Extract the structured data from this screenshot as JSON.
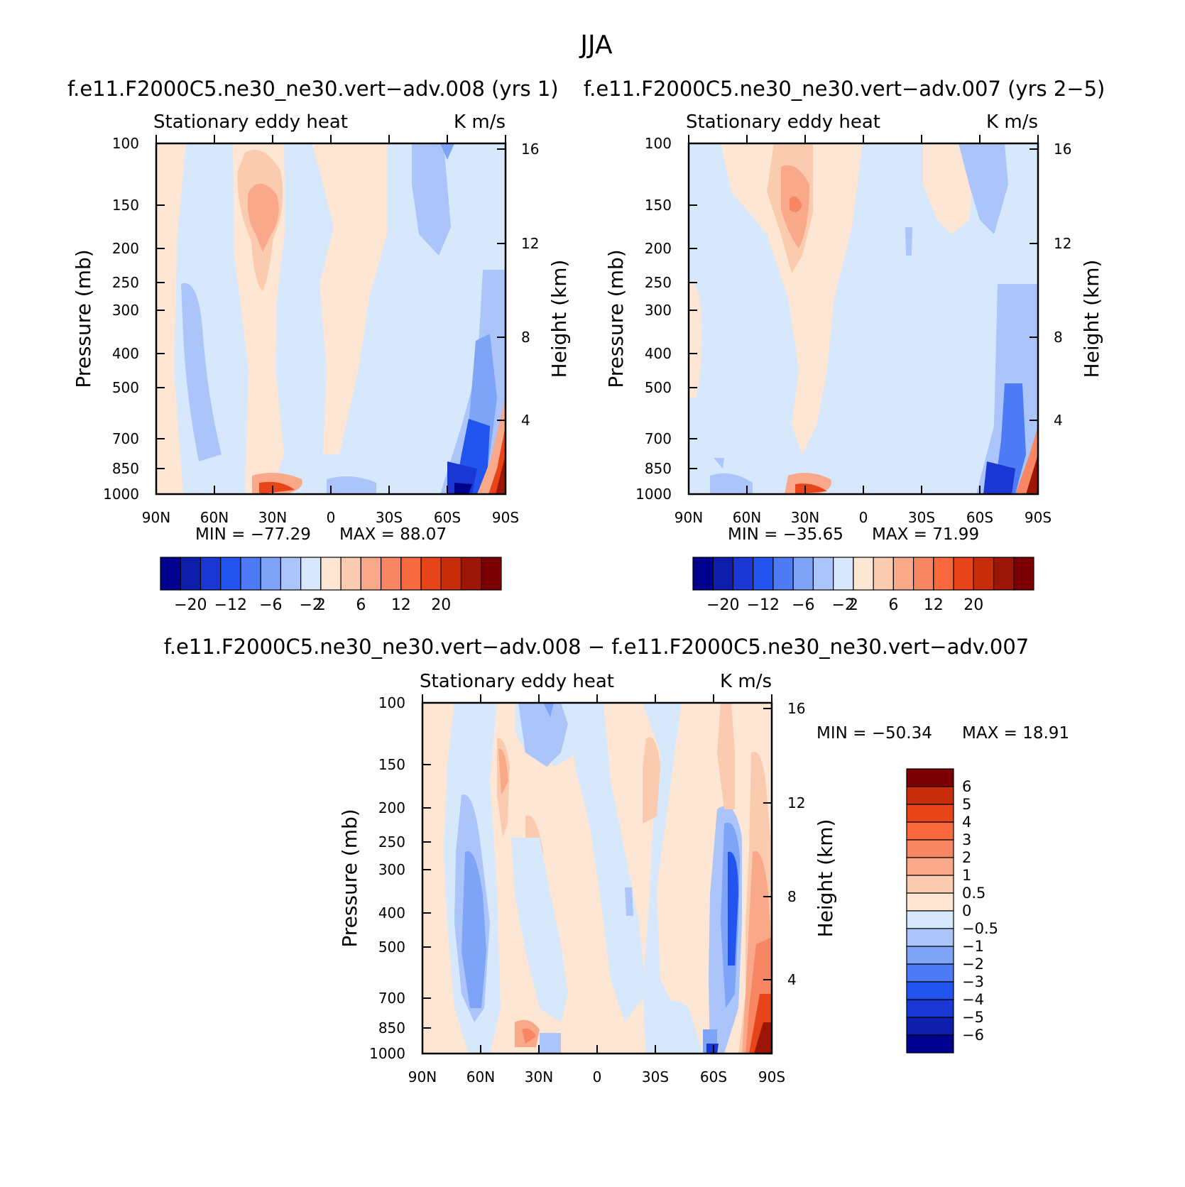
{
  "figure": {
    "title": "JJA"
  },
  "palette": {
    "diverging_18": [
      "#00008f",
      "#0c1eaa",
      "#1a37d4",
      "#2255f0",
      "#4d7af5",
      "#7ea4f7",
      "#abc5fa",
      "#d7e8fc",
      "#fde6d3",
      "#fbcbb0",
      "#f9a989",
      "#f88662",
      "#f86a3d",
      "#e8441a",
      "#c72d0a",
      "#9b1606",
      "#7c0003"
    ],
    "diff_colorbar": [
      "#00008f",
      "#0c1eaa",
      "#1a37d4",
      "#2255f0",
      "#4d7af5",
      "#7ea4f7",
      "#abc5fa",
      "#d7e8fc",
      "#fde6d3",
      "#fbcbb0",
      "#f9a989",
      "#f88662",
      "#f86a3d",
      "#e8441a",
      "#c72d0a",
      "#7c0003"
    ]
  },
  "chart_data": [
    {
      "type": "heatmap",
      "panel": "top-left",
      "title": "f.e11.F2000C5.ne30_ne30.vert−adv.008 (yrs 1)",
      "left_label": "Stationary eddy heat",
      "right_label": "K m/s",
      "xlabel": "",
      "ylabel": "Pressure (mb)",
      "ylabel_right": "Height (km)",
      "x_ticks": [
        "90N",
        "60N",
        "30N",
        "0",
        "30S",
        "60S",
        "90S"
      ],
      "y_ticks": [
        "100",
        "150",
        "200",
        "250",
        "300",
        "400",
        "500",
        "700",
        "850",
        "1000"
      ],
      "y_ticks_right": [
        "16",
        "12",
        "8",
        "4"
      ],
      "ylim": [
        1000,
        100
      ],
      "y_scale": "log",
      "min_text": "MIN = −77.29",
      "max_text": "MAX = 88.07",
      "colorbar_labels": [
        "−20",
        "−12",
        "−6",
        "−2",
        "2",
        "6",
        "12",
        "20"
      ],
      "colorbar_orientation": "horizontal"
    },
    {
      "type": "heatmap",
      "panel": "top-right",
      "title": "f.e11.F2000C5.ne30_ne30.vert−adv.007 (yrs 2−5)",
      "left_label": "Stationary eddy heat",
      "right_label": "K m/s",
      "xlabel": "",
      "ylabel": "Pressure (mb)",
      "ylabel_right": "Height (km)",
      "x_ticks": [
        "90N",
        "60N",
        "30N",
        "0",
        "30S",
        "60S",
        "90S"
      ],
      "y_ticks": [
        "100",
        "150",
        "200",
        "250",
        "300",
        "400",
        "500",
        "700",
        "850",
        "1000"
      ],
      "y_ticks_right": [
        "16",
        "12",
        "8",
        "4"
      ],
      "ylim": [
        1000,
        100
      ],
      "y_scale": "log",
      "min_text": "MIN = −35.65",
      "max_text": "MAX = 71.99",
      "colorbar_labels": [
        "−20",
        "−12",
        "−6",
        "−2",
        "2",
        "6",
        "12",
        "20"
      ],
      "colorbar_orientation": "horizontal"
    },
    {
      "type": "heatmap",
      "panel": "bottom",
      "title": "f.e11.F2000C5.ne30_ne30.vert−adv.008 − f.e11.F2000C5.ne30_ne30.vert−adv.007",
      "left_label": "Stationary eddy heat",
      "right_label": "K m/s",
      "xlabel": "",
      "ylabel": "Pressure (mb)",
      "ylabel_right": "Height (km)",
      "x_ticks": [
        "90N",
        "60N",
        "30N",
        "0",
        "30S",
        "60S",
        "90S"
      ],
      "y_ticks": [
        "100",
        "150",
        "200",
        "250",
        "300",
        "400",
        "500",
        "700",
        "850",
        "1000"
      ],
      "y_ticks_right": [
        "16",
        "12",
        "8",
        "4"
      ],
      "ylim": [
        1000,
        100
      ],
      "y_scale": "log",
      "min_text": "MIN = −50.34",
      "max_text": "MAX = 18.91",
      "colorbar_labels": [
        "6",
        "5",
        "4",
        "3",
        "2",
        "1",
        "0.5",
        "0",
        "−0.5",
        "−1",
        "−2",
        "−3",
        "−4",
        "−5",
        "−6"
      ],
      "colorbar_orientation": "vertical"
    }
  ]
}
